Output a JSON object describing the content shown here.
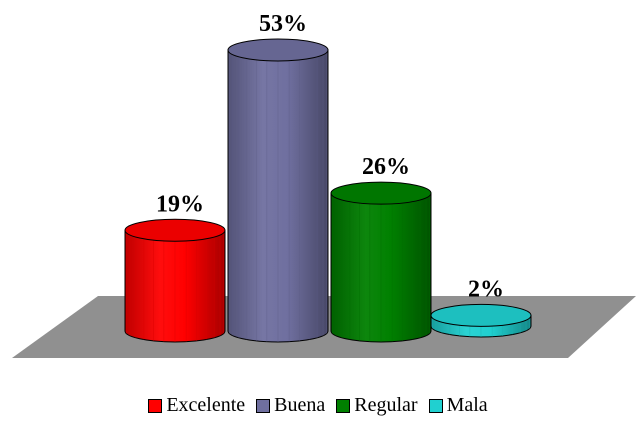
{
  "chart_data": {
    "type": "bar",
    "style": "3d-cylinder",
    "categories": [
      "Excelente",
      "Buena",
      "Regular",
      "Mala"
    ],
    "values": [
      19,
      53,
      26,
      2
    ],
    "data_labels": [
      "19%",
      "53%",
      "26%",
      "2%"
    ],
    "unit": "%",
    "colors": [
      "#ff0000",
      "#6f6f9f",
      "#008000",
      "#20d0d0"
    ],
    "floor_color": "#909090",
    "ylim": [
      0,
      53
    ],
    "grid": false,
    "legend": {
      "placement": "bottom",
      "items": [
        {
          "name": "Excelente",
          "color": "#ff0000"
        },
        {
          "name": "Buena",
          "color": "#6f6f9f"
        },
        {
          "name": "Regular",
          "color": "#008000"
        },
        {
          "name": "Mala",
          "color": "#20d0d0"
        }
      ]
    }
  }
}
